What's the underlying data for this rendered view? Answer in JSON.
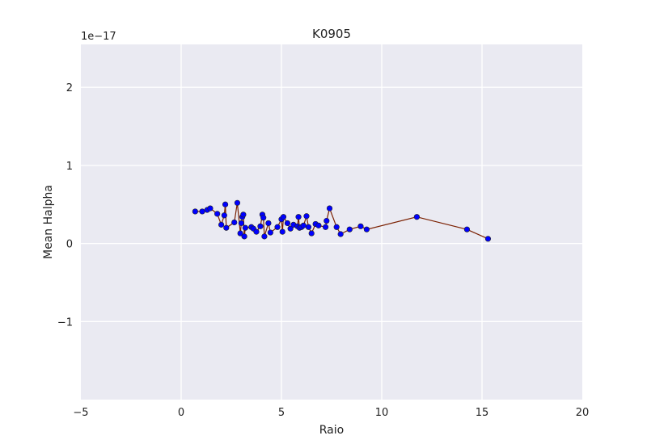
{
  "chart_data": {
    "type": "scatter",
    "title": "K0905",
    "xlabel": "Raio",
    "ylabel": "Mean Halpha",
    "y_offset_label": "1e−17",
    "xlim": [
      -5,
      20
    ],
    "ylim": [
      -2.0,
      2.55
    ],
    "x_ticks": [
      -5,
      0,
      5,
      10,
      15,
      20
    ],
    "x_tick_labels": [
      "−5",
      "0",
      "5",
      "10",
      "15",
      "20"
    ],
    "y_ticks": [
      -1,
      0,
      1,
      2
    ],
    "y_tick_labels": [
      "−1",
      "0",
      "1",
      "2"
    ],
    "grid": true,
    "background_color": "#eaeaf2",
    "grid_color": "#ffffff",
    "marker_color": "#0000ff",
    "marker_edge_color": "#222222",
    "line_color": "#7a1f00",
    "series": [
      {
        "x": [
          0.7,
          1.05,
          1.3,
          1.45,
          1.8,
          2.0,
          2.15,
          2.2,
          2.25,
          2.65,
          2.8,
          2.95,
          3.0,
          3.05,
          3.1,
          3.15,
          3.2,
          3.5,
          3.6,
          3.75,
          3.95,
          4.05,
          4.1,
          4.15,
          4.35,
          4.45,
          4.8,
          5.0,
          5.05,
          5.1,
          5.3,
          5.45,
          5.6,
          5.8,
          5.85,
          5.9,
          6.0,
          6.1,
          6.25,
          6.35,
          6.5,
          6.7,
          6.85,
          7.2,
          7.25,
          7.4,
          7.75,
          7.95,
          8.4,
          8.95,
          9.25,
          11.75,
          14.25,
          15.3
        ],
        "y": [
          0.41,
          0.41,
          0.43,
          0.45,
          0.38,
          0.24,
          0.36,
          0.5,
          0.2,
          0.27,
          0.52,
          0.13,
          0.26,
          0.34,
          0.37,
          0.09,
          0.2,
          0.21,
          0.19,
          0.15,
          0.22,
          0.37,
          0.33,
          0.09,
          0.26,
          0.14,
          0.21,
          0.31,
          0.15,
          0.34,
          0.26,
          0.19,
          0.24,
          0.22,
          0.34,
          0.2,
          0.21,
          0.23,
          0.35,
          0.21,
          0.13,
          0.25,
          0.23,
          0.21,
          0.29,
          0.45,
          0.21,
          0.12,
          0.18,
          0.22,
          0.18,
          0.34,
          0.18,
          0.06
        ]
      }
    ]
  }
}
